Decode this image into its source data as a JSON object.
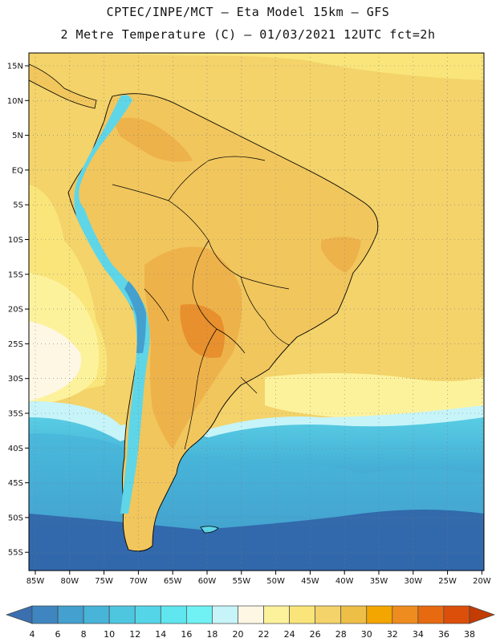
{
  "header": {
    "line1": "CPTEC/INPE/MCT –  Eta Model 15km – GFS",
    "line2": "2 Metre Temperature (C) – 01/03/2021 12UTC fct=2h"
  },
  "map": {
    "lon_labels": [
      "85W",
      "80W",
      "75W",
      "70W",
      "65W",
      "60W",
      "55W",
      "50W",
      "45W",
      "40W",
      "35W",
      "30W",
      "25W",
      "20W"
    ],
    "lat_labels": [
      "15N",
      "10N",
      "5N",
      "EQ",
      "5S",
      "10S",
      "15S",
      "20S",
      "25S",
      "30S",
      "35S",
      "40S",
      "45S",
      "50S",
      "55S"
    ]
  },
  "colorbar": {
    "labels": [
      "4",
      "6",
      "8",
      "10",
      "12",
      "14",
      "16",
      "18",
      "20",
      "22",
      "24",
      "26",
      "28",
      "30",
      "32",
      "34",
      "36",
      "38"
    ],
    "colors": [
      "#3a6fb0",
      "#3f86c0",
      "#43a0cf",
      "#47b4d8",
      "#4fc6e0",
      "#55d6e8",
      "#5fe6ee",
      "#70f2f4",
      "#c6f4f8",
      "#fdf7e4",
      "#fdf29c",
      "#f9e57a",
      "#f3d36a",
      "#eebf47",
      "#f3a500",
      "#ee8c1f",
      "#e76a10",
      "#dc4f0b",
      "#c23c04"
    ]
  },
  "palette": {
    "ocean_deep": "#2f5fa6",
    "ocean_mid": "#3f86c0",
    "ocean_light": "#5fd6e8",
    "warm_ocean": "#f6df82",
    "coast_ocean": "#f9ebb0",
    "land_hot": "#eeb24a",
    "land_warm": "#f1c65d"
  }
}
